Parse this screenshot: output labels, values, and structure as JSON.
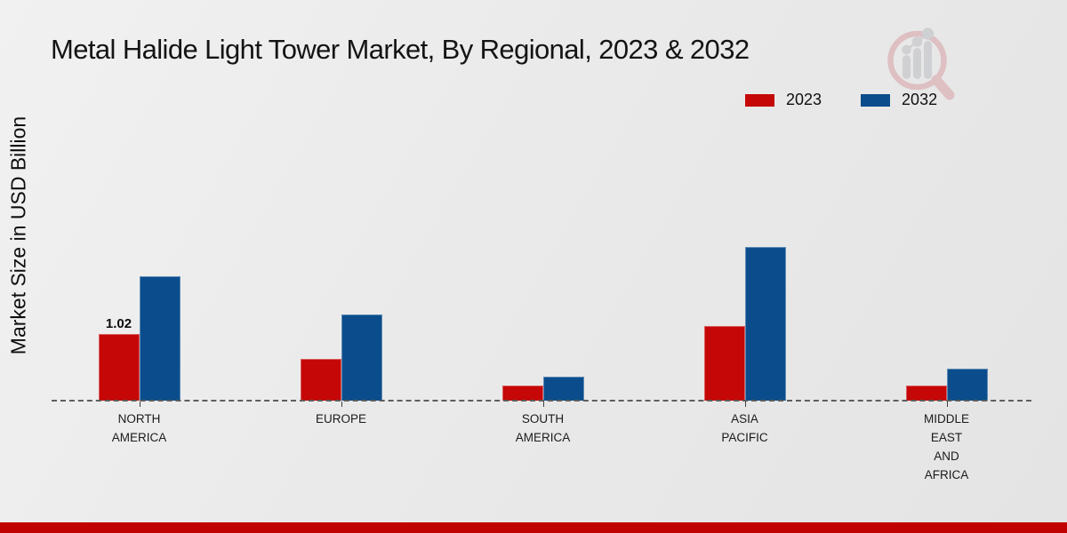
{
  "page": {
    "title": "Metal Halide Light Tower Market, By Regional, 2023 & 2032"
  },
  "colors": {
    "series_2023_red": "#c50707",
    "series_2032_blue": "#0b4d8c",
    "footer_strip_red": "#c00202",
    "background_gray": "#eaeaea"
  },
  "legend": {
    "items": [
      {
        "label": "2023",
        "color": "#c50707"
      },
      {
        "label": "2032",
        "color": "#0b4d8c"
      }
    ]
  },
  "watermark_icon": "magnifier-bar-chart-logo",
  "chart_data": {
    "type": "bar",
    "title": "Metal Halide Light Tower Market, By Regional, 2023 & 2032",
    "xlabel": "",
    "ylabel": "Market Size in USD Billion",
    "categories": [
      "NORTH AMERICA",
      "EUROPE",
      "SOUTH AMERICA",
      "ASIA PACIFIC",
      "MIDDLE EAST AND AFRICA"
    ],
    "category_label_lines": [
      [
        "NORTH",
        "AMERICA"
      ],
      [
        "EUROPE"
      ],
      [
        "SOUTH",
        "AMERICA"
      ],
      [
        "ASIA",
        "PACIFIC"
      ],
      [
        "MIDDLE",
        "EAST",
        "AND",
        "AFRICA"
      ]
    ],
    "series": [
      {
        "name": "2023",
        "color": "#c50707",
        "values": [
          1.02,
          0.64,
          0.23,
          1.14,
          0.23
        ]
      },
      {
        "name": "2032",
        "color": "#0b4d8c",
        "values": [
          1.9,
          1.32,
          0.37,
          2.35,
          0.49
        ]
      }
    ],
    "bar_labels": [
      {
        "series": "2023",
        "category": "NORTH AMERICA",
        "text": "1.02"
      }
    ],
    "ylim": [
      0,
      2.6
    ],
    "grid": false,
    "y_ticks_visible": false,
    "legend_position": "top-right",
    "baseline_style": "dashed"
  }
}
